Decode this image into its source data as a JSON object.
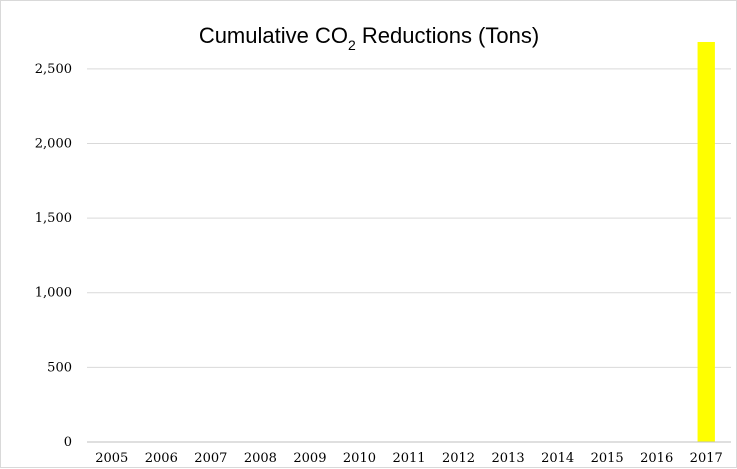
{
  "chart_data": {
    "type": "bar",
    "title": {
      "main": "Cumulative CO",
      "subscript": "2",
      "suffix": " Reductions (Tons)"
    },
    "xlabel": "",
    "ylabel": "",
    "categories": [
      "2005",
      "2006",
      "2007",
      "2008",
      "2009",
      "2010",
      "2011",
      "2012",
      "2013",
      "2014",
      "2015",
      "2016",
      "2017"
    ],
    "values": [
      0,
      0,
      0,
      0,
      0,
      0,
      0,
      0,
      0,
      0,
      0,
      0,
      2680
    ],
    "ylim": [
      0,
      2700
    ],
    "yticks": [
      0,
      500,
      1000,
      1500,
      2000,
      2500
    ],
    "ytick_labels": [
      "0",
      "500",
      "1,000",
      "1,500",
      "2,000",
      "2,500"
    ],
    "grid": true,
    "legend": "none",
    "colors": {
      "bar": "#ffff00",
      "grid": "#d9d9d9",
      "axis": "#bfbfbf",
      "text": "#000000"
    }
  }
}
